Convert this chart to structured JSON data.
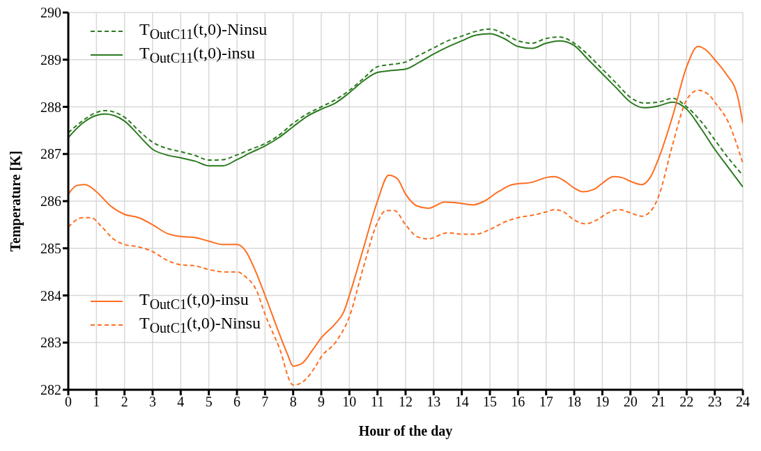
{
  "chart_data": {
    "type": "line",
    "xlabel": "Hour of the day",
    "ylabel": "Temperature [K]",
    "xlim": [
      0,
      24
    ],
    "xticks": [
      0,
      1,
      2,
      3,
      4,
      5,
      6,
      7,
      8,
      9,
      10,
      11,
      12,
      13,
      14,
      15,
      16,
      17,
      18,
      19,
      20,
      21,
      22,
      23,
      24
    ],
    "ylim": [
      282,
      290
    ],
    "yticks": [
      282,
      283,
      284,
      285,
      286,
      287,
      288,
      289,
      290
    ],
    "grid": true,
    "legend": "top left",
    "marker": "none",
    "series": [
      {
        "name": "T$_{OutC11}$(t,0)-Ninsu",
        "color": "#2a7a1f",
        "line_style": "dashed",
        "x": [
          0,
          0.5,
          1,
          1.3,
          2,
          2.5,
          3,
          3.5,
          4,
          4.5,
          5,
          5.5,
          6,
          6.5,
          7,
          7.5,
          8,
          8.5,
          9,
          9.5,
          10,
          10.5,
          11,
          11.5,
          12,
          12.5,
          13,
          13.5,
          14,
          14.5,
          15,
          15.5,
          16,
          16.5,
          17,
          17.5,
          18,
          18.5,
          19,
          19.5,
          20,
          20.5,
          21,
          21.5,
          22,
          22.5,
          23,
          23.5,
          24
        ],
        "values": [
          287.45,
          287.7,
          287.88,
          287.92,
          287.78,
          287.5,
          287.25,
          287.12,
          287.05,
          286.97,
          286.87,
          286.88,
          286.98,
          287.1,
          287.22,
          287.4,
          287.65,
          287.85,
          288.0,
          288.15,
          288.35,
          288.6,
          288.85,
          288.9,
          288.95,
          289.1,
          289.25,
          289.4,
          289.5,
          289.6,
          289.65,
          289.55,
          289.4,
          289.35,
          289.45,
          289.48,
          289.35,
          289.1,
          288.8,
          288.5,
          288.2,
          288.08,
          288.1,
          288.18,
          288.0,
          287.7,
          287.3,
          286.9,
          286.55
        ]
      },
      {
        "name": "T$_{OutC11}$(t,0)-insu",
        "color": "#2a7a1f",
        "line_style": "solid",
        "x": [
          0,
          0.5,
          1,
          1.3,
          2,
          2.5,
          3,
          3.5,
          4,
          4.5,
          5,
          5.5,
          6,
          6.5,
          7,
          7.5,
          8,
          8.5,
          9,
          9.5,
          10,
          10.5,
          11,
          11.5,
          12,
          12.5,
          13,
          13.5,
          14,
          14.5,
          15,
          15.5,
          16,
          16.5,
          17,
          17.5,
          18,
          18.5,
          19,
          19.5,
          20,
          20.5,
          21,
          21.5,
          22,
          22.5,
          23,
          23.5,
          24
        ],
        "values": [
          287.35,
          287.65,
          287.82,
          287.85,
          287.7,
          287.4,
          287.1,
          286.98,
          286.92,
          286.85,
          286.75,
          286.75,
          286.88,
          287.03,
          287.17,
          287.35,
          287.58,
          287.8,
          287.95,
          288.08,
          288.3,
          288.55,
          288.73,
          288.77,
          288.8,
          288.95,
          289.12,
          289.27,
          289.4,
          289.52,
          289.55,
          289.45,
          289.28,
          289.24,
          289.35,
          289.4,
          289.3,
          289.0,
          288.7,
          288.4,
          288.1,
          287.98,
          288.02,
          288.1,
          287.95,
          287.55,
          287.1,
          286.7,
          286.3
        ]
      },
      {
        "name": "T$_{OutC1}$(t,0)-insu",
        "color": "#ff6d1f",
        "line_style": "solid",
        "x": [
          0,
          0.3,
          0.6,
          1,
          1.5,
          2,
          2.5,
          3,
          3.5,
          4,
          4.5,
          5,
          5.5,
          6,
          6.3,
          6.6,
          7,
          7.5,
          7.8,
          8,
          8.3,
          8.7,
          9,
          9.5,
          9.8,
          10,
          10.5,
          11,
          11.4,
          11.7,
          12,
          12.4,
          12.8,
          13.4,
          14,
          14.4,
          14.8,
          15.3,
          15.8,
          16.5,
          17,
          17.3,
          17.6,
          18,
          18.3,
          18.7,
          19,
          19.4,
          19.7,
          20,
          20.4,
          20.7,
          21,
          21.5,
          22,
          22.4,
          22.7,
          23,
          23.4,
          23.8,
          24
        ],
        "values": [
          286.15,
          286.33,
          286.35,
          286.2,
          285.9,
          285.72,
          285.65,
          285.5,
          285.32,
          285.25,
          285.23,
          285.15,
          285.08,
          285.08,
          284.95,
          284.6,
          284.0,
          283.2,
          282.75,
          282.5,
          282.55,
          282.85,
          283.1,
          283.4,
          283.65,
          284.0,
          285.0,
          286.0,
          286.55,
          286.48,
          286.15,
          285.9,
          285.85,
          285.98,
          285.95,
          285.92,
          286.0,
          286.2,
          286.35,
          286.4,
          286.5,
          286.52,
          286.45,
          286.28,
          286.2,
          286.25,
          286.38,
          286.52,
          286.5,
          286.42,
          286.35,
          286.5,
          286.9,
          287.8,
          288.85,
          289.28,
          289.2,
          289.0,
          288.7,
          288.25,
          287.65
        ]
      },
      {
        "name": "T$_{OutC1}$(t,0)-Ninsu",
        "color": "#ff6d1f",
        "line_style": "dashed",
        "x": [
          0,
          0.5,
          0.8,
          1.2,
          1.6,
          2,
          2.5,
          3,
          3.5,
          4,
          4.5,
          5,
          5.5,
          6,
          6.3,
          6.7,
          7,
          7.5,
          8,
          8.3,
          8.8,
          9,
          9.5,
          10,
          10.5,
          11,
          11.3,
          11.6,
          12,
          12.4,
          12.8,
          13.5,
          14,
          14.5,
          15,
          15.5,
          16,
          16.5,
          17,
          17.3,
          17.6,
          18,
          18.4,
          18.8,
          19.2,
          19.6,
          20,
          20.4,
          20.8,
          21,
          21.5,
          22,
          22.4,
          22.8,
          23,
          23.5,
          24
        ],
        "values": [
          285.45,
          285.65,
          285.65,
          285.45,
          285.2,
          285.08,
          285.03,
          284.93,
          284.75,
          284.65,
          284.63,
          284.55,
          284.5,
          284.5,
          284.4,
          284.1,
          283.6,
          282.9,
          282.1,
          282.15,
          282.5,
          282.7,
          283.0,
          283.55,
          284.6,
          285.55,
          285.8,
          285.8,
          285.5,
          285.25,
          285.2,
          285.33,
          285.3,
          285.3,
          285.4,
          285.55,
          285.65,
          285.7,
          285.77,
          285.82,
          285.78,
          285.6,
          285.52,
          285.6,
          285.75,
          285.82,
          285.75,
          285.68,
          285.85,
          286.1,
          287.2,
          288.15,
          288.35,
          288.25,
          288.1,
          287.65,
          286.8
        ]
      }
    ]
  }
}
